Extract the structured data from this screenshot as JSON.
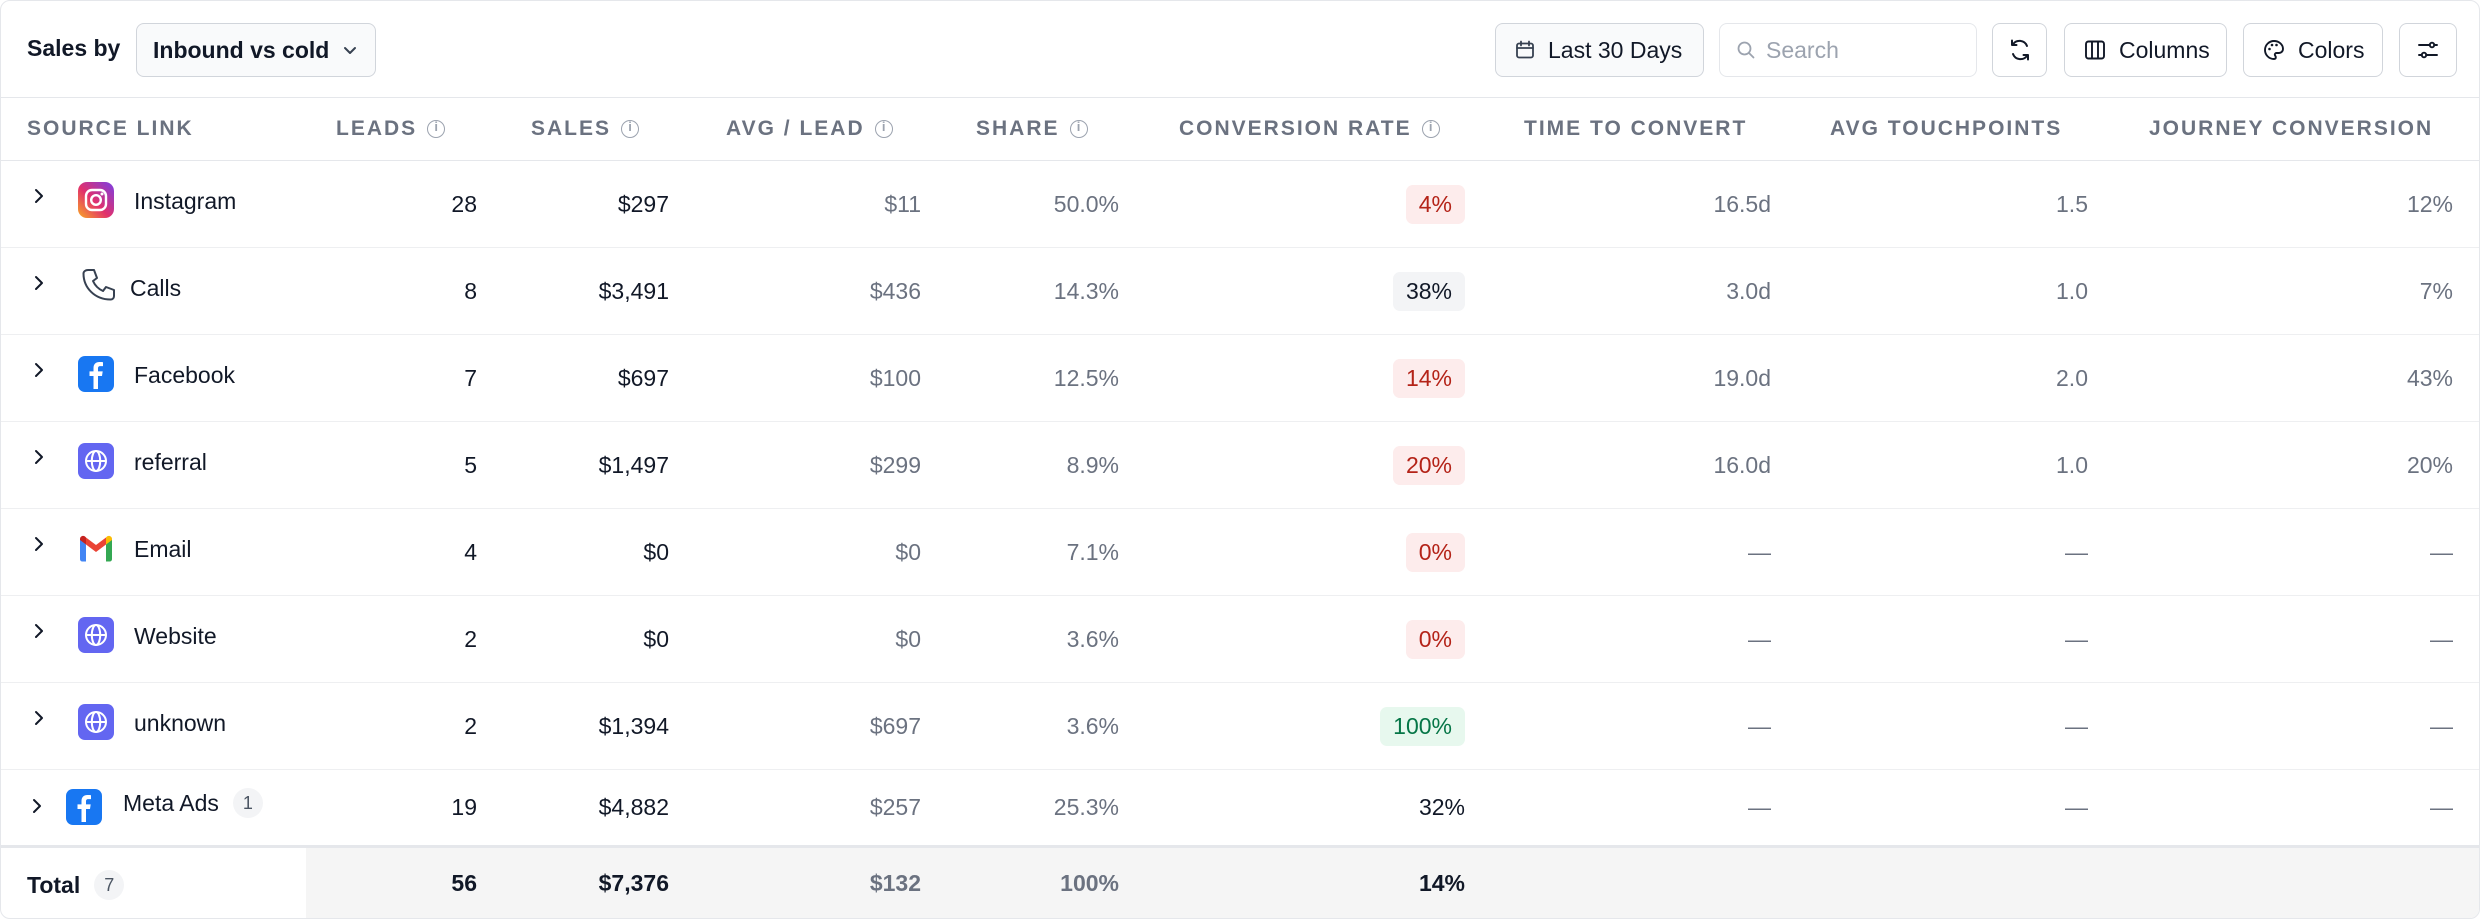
{
  "toolbar": {
    "label": "Sales by",
    "group_select": "Inbound vs cold",
    "date_range": "Last 30 Days",
    "search_placeholder": "Search",
    "columns_label": "Columns",
    "colors_label": "Colors"
  },
  "columns": {
    "source": "SOURCE LINK",
    "leads": "LEADS",
    "sales": "SALES",
    "avg": "AVG / LEAD",
    "share": "SHARE",
    "conv": "CONVERSION RATE",
    "ttc": "TIME TO CONVERT",
    "touch": "AVG TOUCHPOINTS",
    "jc": "JOURNEY CONVERSION"
  },
  "rows": [
    {
      "name": "Instagram",
      "icon": "instagram-icon",
      "leads": "28",
      "sales": "$297",
      "avg": "$11",
      "share": "50.0%",
      "conv": "4%",
      "conv_style": "red",
      "ttc": "16.5d",
      "touch": "1.5",
      "jc": "12%"
    },
    {
      "name": "Calls",
      "icon": "phone-icon",
      "leads": "8",
      "sales": "$3,491",
      "avg": "$436",
      "share": "14.3%",
      "conv": "38%",
      "conv_style": "gray",
      "ttc": "3.0d",
      "touch": "1.0",
      "jc": "7%"
    },
    {
      "name": "Facebook",
      "icon": "facebook-icon",
      "leads": "7",
      "sales": "$697",
      "avg": "$100",
      "share": "12.5%",
      "conv": "14%",
      "conv_style": "red",
      "ttc": "19.0d",
      "touch": "2.0",
      "jc": "43%"
    },
    {
      "name": "referral",
      "icon": "globe-icon",
      "leads": "5",
      "sales": "$1,497",
      "avg": "$299",
      "share": "8.9%",
      "conv": "20%",
      "conv_style": "red",
      "ttc": "16.0d",
      "touch": "1.0",
      "jc": "20%"
    },
    {
      "name": "Email",
      "icon": "gmail-icon",
      "leads": "4",
      "sales": "$0",
      "avg": "$0",
      "share": "7.1%",
      "conv": "0%",
      "conv_style": "red",
      "ttc": "—",
      "touch": "—",
      "jc": "—"
    },
    {
      "name": "Website",
      "icon": "globe-icon",
      "leads": "2",
      "sales": "$0",
      "avg": "$0",
      "share": "3.6%",
      "conv": "0%",
      "conv_style": "red",
      "ttc": "—",
      "touch": "—",
      "jc": "—"
    },
    {
      "name": "unknown",
      "icon": "globe-icon",
      "leads": "2",
      "sales": "$1,394",
      "avg": "$697",
      "share": "3.6%",
      "conv": "100%",
      "conv_style": "green",
      "ttc": "—",
      "touch": "—",
      "jc": "—"
    }
  ],
  "meta_row": {
    "name": "Meta Ads",
    "icon": "facebook-icon",
    "badge": "1",
    "leads": "19",
    "sales": "$4,882",
    "avg": "$257",
    "share": "25.3%",
    "conv": "32%",
    "ttc": "—",
    "touch": "—",
    "jc": "—"
  },
  "total": {
    "label": "Total",
    "badge": "7",
    "leads": "56",
    "sales": "$7,376",
    "avg": "$132",
    "share": "100%",
    "conv": "14%"
  },
  "colors": {
    "red_pill": "#fdecec",
    "green_pill": "#e7f8ee",
    "globe": "#6366f1",
    "facebook": "#1877f2"
  }
}
